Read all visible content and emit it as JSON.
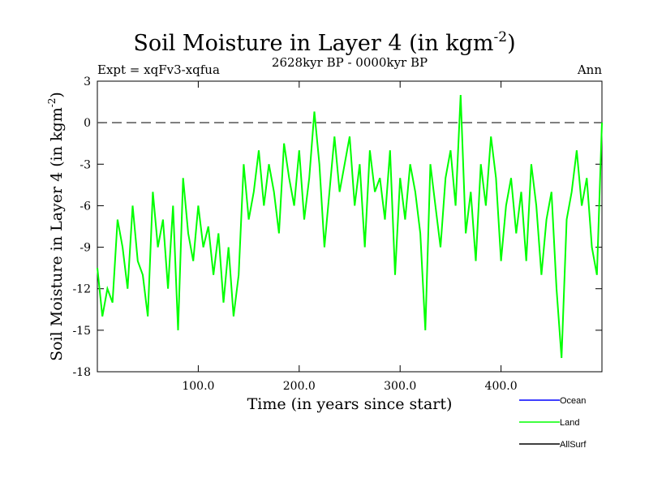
{
  "chart_data": {
    "type": "line",
    "title": "Soil Moisture in Layer 4 (in kgm",
    "title_sup": "-2",
    "title_close": ")",
    "subtitle": "2628kyr BP - 0000kyr BP",
    "left_note": "Expt = xqFv3-xqfua",
    "right_note": "Ann",
    "xlabel": "Time (in years since start)",
    "ylabel": "Soil Moisture in Layer 4 (in kgm",
    "ylabel_sup": "-2",
    "ylabel_close": ")",
    "xlim": [
      0,
      500
    ],
    "ylim": [
      -18,
      3
    ],
    "xticks": [
      100,
      200,
      300,
      400
    ],
    "xtick_labels": [
      "100.0",
      "200.0",
      "300.0",
      "400.0"
    ],
    "yticks": [
      3,
      0,
      -3,
      -6,
      -9,
      -12,
      -15,
      -18
    ],
    "ytick_labels": [
      "3",
      "0",
      "-3",
      "-6",
      "-9",
      "-12",
      "-15",
      "-18"
    ],
    "reference_line": 0,
    "legend": [
      {
        "name": "Ocean",
        "color": "#0000ff"
      },
      {
        "name": "Land",
        "color": "#00ff00"
      },
      {
        "name": "AllSurf",
        "color": "#000000"
      }
    ],
    "series": [
      {
        "name": "Land",
        "color": "#00ff00",
        "x": [
          0,
          5,
          10,
          15,
          20,
          25,
          30,
          35,
          40,
          45,
          50,
          55,
          60,
          65,
          70,
          75,
          80,
          85,
          90,
          95,
          100,
          105,
          110,
          115,
          120,
          125,
          130,
          135,
          140,
          145,
          150,
          155,
          160,
          165,
          170,
          175,
          180,
          185,
          190,
          195,
          200,
          205,
          210,
          215,
          220,
          225,
          230,
          235,
          240,
          245,
          250,
          255,
          260,
          265,
          270,
          275,
          280,
          285,
          290,
          295,
          300,
          305,
          310,
          315,
          320,
          325,
          330,
          335,
          340,
          345,
          350,
          355,
          360,
          365,
          370,
          375,
          380,
          385,
          390,
          395,
          400,
          405,
          410,
          415,
          420,
          425,
          430,
          435,
          440,
          445,
          450,
          455,
          460,
          465,
          470,
          475,
          480,
          485,
          490,
          495,
          500
        ],
        "values": [
          -10.5,
          -14,
          -12,
          -13,
          -7,
          -9,
          -12,
          -6,
          -10,
          -11,
          -14,
          -5,
          -9,
          -7,
          -12,
          -6,
          -15,
          -4,
          -8,
          -10,
          -6,
          -9,
          -7.5,
          -11,
          -8,
          -13,
          -9,
          -14,
          -11,
          -3,
          -7,
          -5,
          -2,
          -6,
          -3,
          -5,
          -8,
          -1.5,
          -4,
          -6,
          -2,
          -7,
          -4,
          0.8,
          -3,
          -9,
          -5,
          -1,
          -5,
          -3,
          -1,
          -6,
          -3,
          -9,
          -2,
          -5,
          -4,
          -7,
          -2,
          -11,
          -4,
          -7,
          -3,
          -5,
          -8,
          -15,
          -3,
          -6,
          -9,
          -4,
          -2,
          -6,
          2,
          -8,
          -5,
          -10,
          -3,
          -6,
          -1,
          -4,
          -10,
          -6,
          -4,
          -8,
          -5,
          -10,
          -3,
          -6,
          -11,
          -7,
          -5,
          -12,
          -17,
          -7,
          -5,
          -2,
          -6,
          -4,
          -9,
          -11,
          0
        ]
      }
    ]
  }
}
